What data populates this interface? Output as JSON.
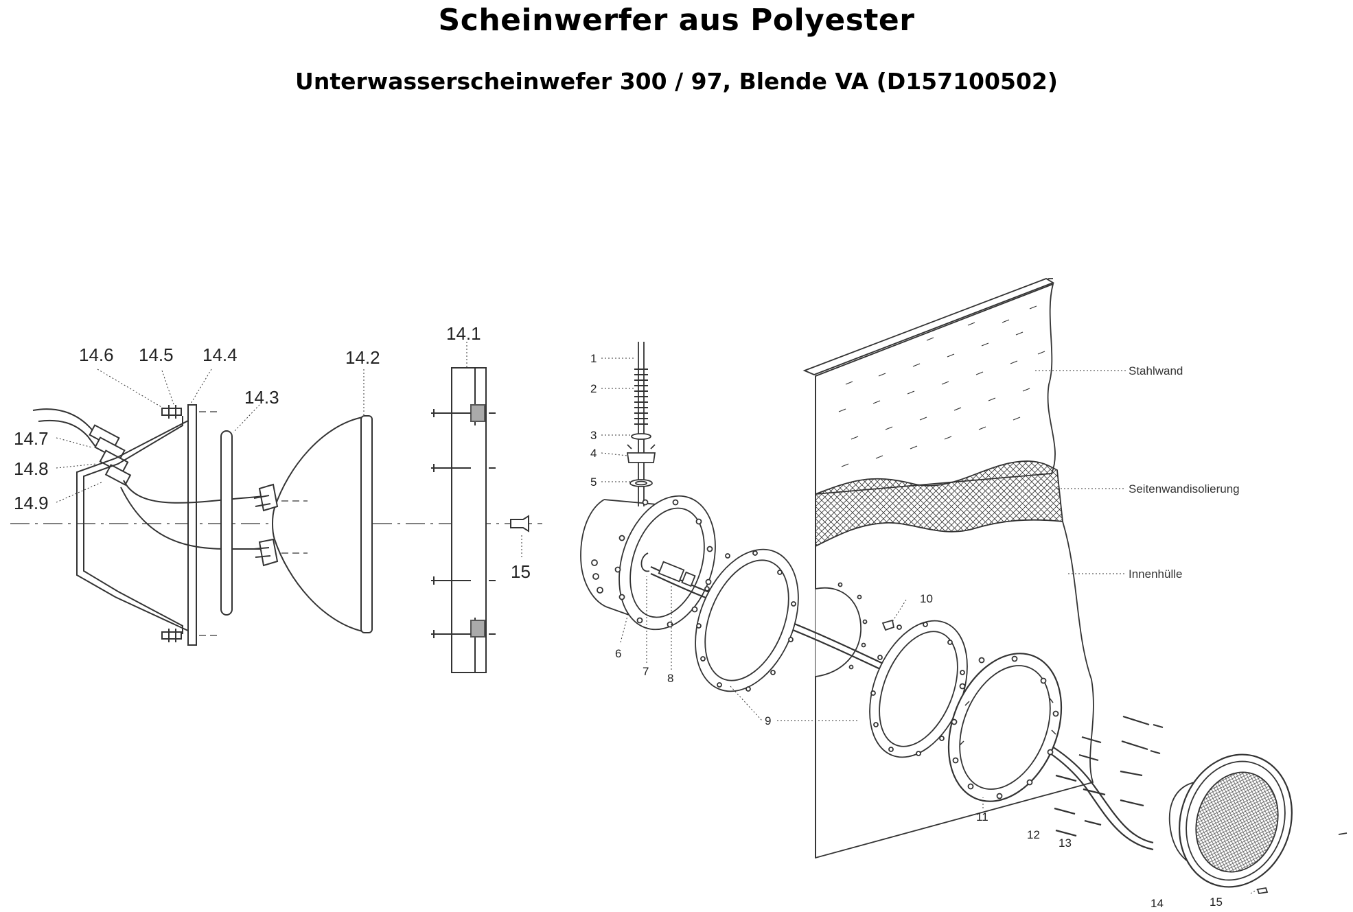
{
  "header": {
    "title": "Scheinwerfer aus Polyester",
    "subtitle": "Unterwasserscheinwefer 300 / 97, Blende VA (D157100502)"
  },
  "left_assembly": {
    "callouts": [
      "14.1",
      "14.2",
      "14.3",
      "14.4",
      "14.5",
      "14.6",
      "14.7",
      "14.8",
      "14.9",
      "15"
    ]
  },
  "right_assembly": {
    "callouts": [
      "1",
      "2",
      "3",
      "4",
      "5",
      "6",
      "7",
      "8",
      "9",
      "10",
      "11",
      "12",
      "13",
      "14",
      "15"
    ],
    "wall_layers": [
      "Stahlwand",
      "Seitenwandisolierung",
      "Innenhülle"
    ]
  }
}
